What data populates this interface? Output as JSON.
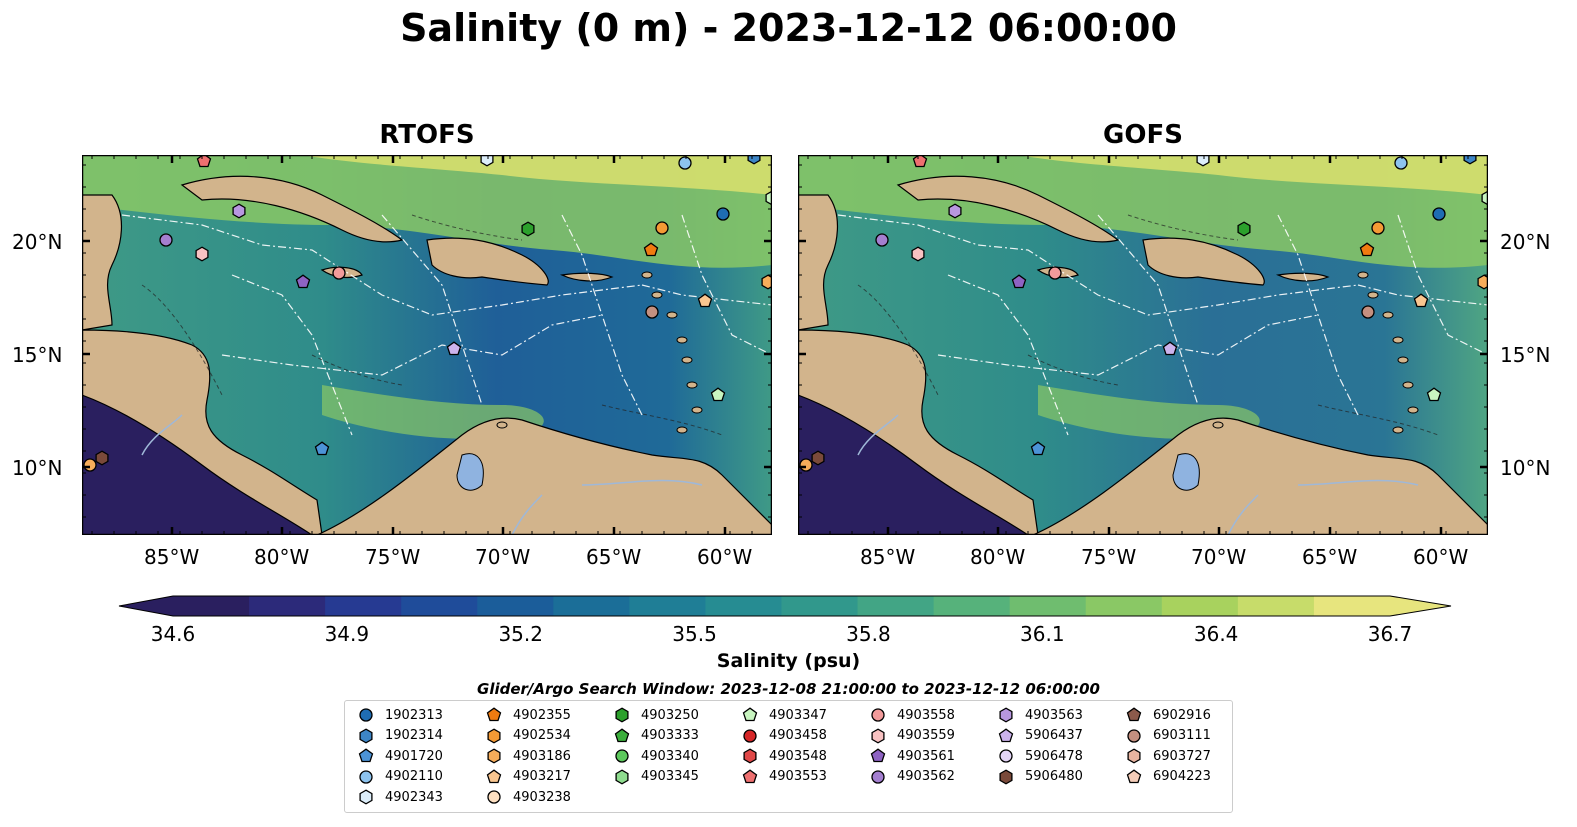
{
  "title": "Salinity (0 m) - 2023-12-12 06:00:00",
  "panels": [
    {
      "title": "RTOFS"
    },
    {
      "title": "GOFS"
    }
  ],
  "lon_ticks": [
    "85°W",
    "80°W",
    "75°W",
    "70°W",
    "65°W",
    "60°W"
  ],
  "lat_ticks": [
    "20°N",
    "15°N",
    "10°N"
  ],
  "colorbar": {
    "label": "Salinity (psu)",
    "ticks": [
      "34.6",
      "34.9",
      "35.2",
      "35.5",
      "35.8",
      "36.1",
      "36.4",
      "36.7"
    ],
    "colors": [
      "#2a1f5f",
      "#2c2a7a",
      "#263a92",
      "#1f4c9a",
      "#1b5d9a",
      "#1b6e98",
      "#1f7e96",
      "#268c92",
      "#31988c",
      "#42a585",
      "#56b27b",
      "#6fbd6f",
      "#8ac865",
      "#a8d25e",
      "#c7dc6a",
      "#e7e57e"
    ]
  },
  "legend": {
    "title": "Glider/Argo Search Window: 2023-12-08 21:00:00 to 2023-12-12 06:00:00",
    "columns": [
      [
        {
          "id": "1902313",
          "marker": "circle",
          "color": "#1f6db3"
        },
        {
          "id": "1902314",
          "marker": "hexagon",
          "color": "#3d85c6"
        },
        {
          "id": "4901720",
          "marker": "pentagon",
          "color": "#4c93d6"
        },
        {
          "id": "4902110",
          "marker": "circle",
          "color": "#8dc3ee"
        },
        {
          "id": "4902343",
          "marker": "hexagon",
          "color": "#ddeefa"
        }
      ],
      [
        {
          "id": "4902355",
          "marker": "pentagon",
          "color": "#f07b10"
        },
        {
          "id": "4902534",
          "marker": "hexagon",
          "color": "#f49a35"
        },
        {
          "id": "4903186",
          "marker": "hexagon",
          "color": "#f7ad5a"
        },
        {
          "id": "4903217",
          "marker": "pentagon",
          "color": "#f9c690"
        },
        {
          "id": "4903238",
          "marker": "circle",
          "color": "#fde0c2"
        }
      ],
      [
        {
          "id": "4903250",
          "marker": "hexagon",
          "color": "#2ca02c"
        },
        {
          "id": "4903333",
          "marker": "pentagon",
          "color": "#3cae3c"
        },
        {
          "id": "4903340",
          "marker": "circle",
          "color": "#5cc85c"
        },
        {
          "id": "4903345",
          "marker": "hexagon",
          "color": "#8fdc8f"
        }
      ],
      [
        {
          "id": "4903347",
          "marker": "pentagon",
          "color": "#c8f5c0"
        },
        {
          "id": "4903458",
          "marker": "circle",
          "color": "#d62728"
        },
        {
          "id": "4903548",
          "marker": "hexagon",
          "color": "#e04848"
        },
        {
          "id": "4903553",
          "marker": "pentagon",
          "color": "#ee7070"
        }
      ],
      [
        {
          "id": "4903558",
          "marker": "circle",
          "color": "#f29b9b"
        },
        {
          "id": "4903559",
          "marker": "hexagon",
          "color": "#f8c2c2"
        },
        {
          "id": "4903561",
          "marker": "pentagon",
          "color": "#8e63c3"
        },
        {
          "id": "4903562",
          "marker": "circle",
          "color": "#a47fd0"
        }
      ],
      [
        {
          "id": "4903563",
          "marker": "hexagon",
          "color": "#b897e0"
        },
        {
          "id": "5906437",
          "marker": "pentagon",
          "color": "#ccb3ec"
        },
        {
          "id": "5906478",
          "marker": "circle",
          "color": "#e3d4f6"
        },
        {
          "id": "5906480",
          "marker": "hexagon",
          "color": "#7a4a3a"
        }
      ],
      [
        {
          "id": "6902916",
          "marker": "pentagon",
          "color": "#8c5a4b"
        },
        {
          "id": "6903111",
          "marker": "circle",
          "color": "#c49080"
        },
        {
          "id": "6903727",
          "marker": "hexagon",
          "color": "#e8b4a0"
        },
        {
          "id": "6904223",
          "marker": "pentagon",
          "color": "#f4cdb9"
        }
      ]
    ]
  },
  "map_colors": {
    "land": "#d2b48c",
    "pacific": "#2a1f5f",
    "ocean_mid": "#2f8c8a",
    "ocean_high": "#8ac865",
    "ocean_low": "#1f4c9a"
  }
}
